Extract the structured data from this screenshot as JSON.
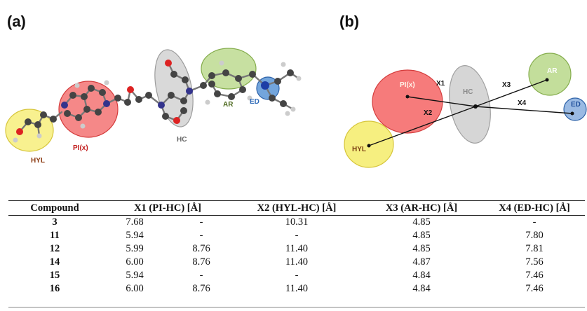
{
  "panels": {
    "a": {
      "label": "(a)"
    },
    "b": {
      "label": "(b)"
    }
  },
  "molecule": {
    "labels": {
      "hyl": "HYL",
      "pi": "PI(x)",
      "hc": "HC",
      "ar": "AR",
      "ed": "ED"
    },
    "colors": {
      "hyl": "#f5ec6a",
      "pi": "#f26a6a",
      "hc": "#cfcfcf",
      "ar": "#b9d88a",
      "ed": "#5b95d6"
    }
  },
  "pharmacophore": {
    "labels": {
      "pi": "PI(x)",
      "hyl": "HYL",
      "hc": "HC",
      "ar": "AR",
      "ed": "ED"
    },
    "distances": {
      "x1": "X1",
      "x2": "X2",
      "x3": "X3",
      "x4": "X4"
    }
  },
  "table": {
    "headers": [
      "Compound",
      "X1 (PI-HC) [Å]",
      "X2 (HYL-HC) [Å]",
      "X3 (AR-HC) [Å]",
      "X4 (ED-HC) [Å]"
    ],
    "rows": [
      {
        "compound": "3",
        "x1a": "7.68",
        "x1b": "-",
        "x2": "10.31",
        "x3": "4.85",
        "x4": "-"
      },
      {
        "compound": "11",
        "x1a": "5.94",
        "x1b": "-",
        "x2": "-",
        "x3": "4.85",
        "x4": "7.80"
      },
      {
        "compound": "12",
        "x1a": "5.99",
        "x1b": "8.76",
        "x2": "11.40",
        "x3": "4.85",
        "x4": "7.81"
      },
      {
        "compound": "14",
        "x1a": "6.00",
        "x1b": "8.76",
        "x2": "11.40",
        "x3": "4.87",
        "x4": "7.56"
      },
      {
        "compound": "15",
        "x1a": "5.94",
        "x1b": "-",
        "x2": "-",
        "x3": "4.84",
        "x4": "7.46"
      },
      {
        "compound": "16",
        "x1a": "6.00",
        "x1b": "8.76",
        "x2": "11.40",
        "x3": "4.84",
        "x4": "7.46"
      }
    ]
  }
}
